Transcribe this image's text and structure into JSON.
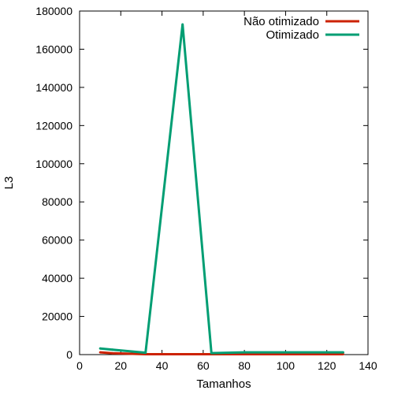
{
  "chart_data": {
    "type": "line",
    "xlabel": "Tamanhos",
    "ylabel": "L3",
    "xlim": [
      0,
      140
    ],
    "ylim": [
      0,
      180000
    ],
    "x_ticks": [
      0,
      20,
      40,
      60,
      80,
      100,
      120,
      140
    ],
    "y_ticks": [
      0,
      20000,
      40000,
      60000,
      80000,
      100000,
      120000,
      140000,
      160000,
      180000
    ],
    "grid": false,
    "legend_position": "top-right",
    "series": [
      {
        "name": "Não otimizado",
        "color": "#cc2200",
        "points": [
          [
            10,
            1200
          ],
          [
            16,
            700
          ],
          [
            32,
            200
          ],
          [
            50,
            200
          ],
          [
            64,
            200
          ],
          [
            80,
            200
          ],
          [
            128,
            200
          ]
        ]
      },
      {
        "name": "Otimizado",
        "color": "#009e73",
        "points": [
          [
            10,
            3200
          ],
          [
            16,
            2600
          ],
          [
            32,
            1000
          ],
          [
            50,
            173000
          ],
          [
            64,
            800
          ],
          [
            80,
            1200
          ],
          [
            128,
            1200
          ]
        ]
      }
    ]
  }
}
